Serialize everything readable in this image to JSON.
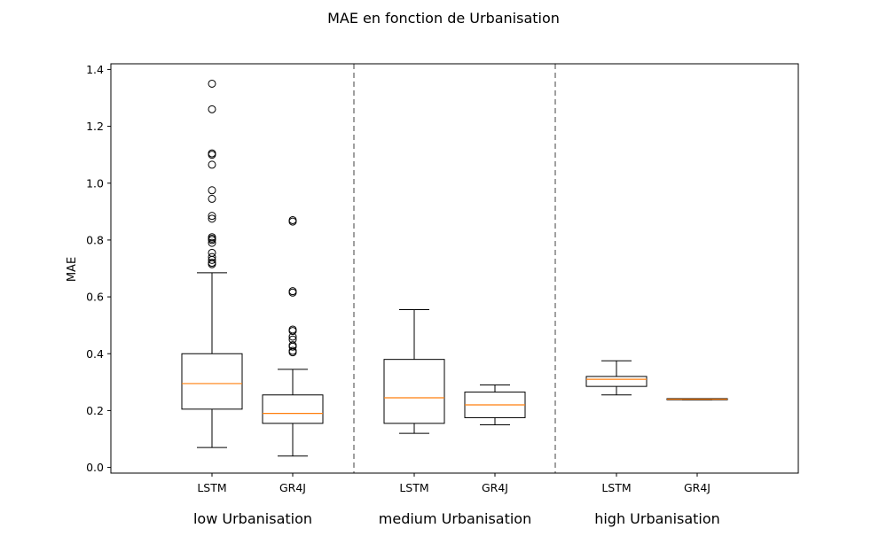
{
  "chart_data": {
    "type": "box",
    "title": "MAE en fonction de Urbanisation",
    "xlabel": "",
    "ylabel": "MAE",
    "ylim": [
      -0.02,
      1.42
    ],
    "yticks": [
      "0.0",
      "0.2",
      "0.4",
      "0.6",
      "0.8",
      "1.0",
      "1.2",
      "1.4"
    ],
    "grid": false,
    "legend": "none",
    "colors": {
      "box": "#000000",
      "median": "#ff7f0e",
      "separator": "#808080"
    },
    "groups": [
      {
        "label": "low Urbanisation",
        "boxes": [
          {
            "category": "LSTM",
            "whisker_low": 0.07,
            "q1": 0.205,
            "median": 0.295,
            "q3": 0.4,
            "whisker_high": 0.685,
            "outliers": [
              0.715,
              0.72,
              0.73,
              0.74,
              0.755,
              0.79,
              0.8,
              0.805,
              0.81,
              0.875,
              0.885,
              0.945,
              0.975,
              1.065,
              1.1,
              1.105,
              1.26,
              1.35
            ]
          },
          {
            "category": "GR4J",
            "whisker_low": 0.04,
            "q1": 0.155,
            "median": 0.19,
            "q3": 0.255,
            "whisker_high": 0.345,
            "outliers": [
              0.405,
              0.41,
              0.425,
              0.43,
              0.45,
              0.46,
              0.48,
              0.485,
              0.615,
              0.62,
              0.865,
              0.87
            ]
          }
        ]
      },
      {
        "label": "medium Urbanisation",
        "boxes": [
          {
            "category": "LSTM",
            "whisker_low": 0.12,
            "q1": 0.155,
            "median": 0.245,
            "q3": 0.38,
            "whisker_high": 0.555,
            "outliers": []
          },
          {
            "category": "GR4J",
            "whisker_low": 0.15,
            "q1": 0.175,
            "median": 0.22,
            "q3": 0.265,
            "whisker_high": 0.29,
            "outliers": []
          }
        ]
      },
      {
        "label": "high Urbanisation",
        "boxes": [
          {
            "category": "LSTM",
            "whisker_low": 0.255,
            "q1": 0.285,
            "median": 0.31,
            "q3": 0.32,
            "whisker_high": 0.375,
            "outliers": []
          },
          {
            "category": "GR4J",
            "whisker_low": 0.238,
            "q1": 0.238,
            "median": 0.24,
            "q3": 0.242,
            "whisker_high": 0.242,
            "outliers": []
          }
        ]
      }
    ]
  }
}
